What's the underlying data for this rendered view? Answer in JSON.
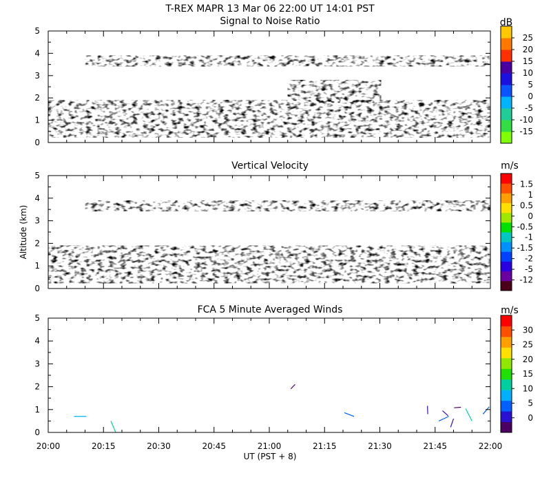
{
  "header": {
    "title": "T-REX   MAPR 13 Mar 06   22:00 UT   14:01   PST"
  },
  "shared": {
    "x_axis_label": "UT  (PST + 8)",
    "x_tick_labels": [
      "20:00",
      "20:15",
      "20:30",
      "20:45",
      "21:00",
      "21:15",
      "21:30",
      "21:45",
      "22:00"
    ],
    "y_axis_label": "Altitude (km)"
  },
  "chart_data": [
    {
      "type": "heatmap",
      "title": "Signal to Noise Ratio",
      "xlabel": "",
      "ylabel": "",
      "x_range": [
        "20:00",
        "22:00"
      ],
      "ylim": [
        0,
        5
      ],
      "y_ticks": [
        "0",
        "1",
        "2",
        "3",
        "4",
        "5"
      ],
      "colorbar": {
        "unit": "dB",
        "labels": [
          "-15",
          "-10",
          "-5",
          "0",
          "5",
          "10",
          "15",
          "20",
          "25"
        ],
        "colors": [
          "#80ff00",
          "#33dd44",
          "#22cc99",
          "#00b4ff",
          "#0a55ff",
          "#1a10e0",
          "#4a00a0",
          "#ff3000",
          "#ff7800",
          "#ffc800"
        ]
      },
      "data_gap": [
        "20:59",
        "21:05"
      ],
      "features": [
        {
          "name": "boundary layer echo",
          "t_start": "20:00",
          "t_end": "22:00",
          "alt_low": 0.3,
          "alt_high": 1.9,
          "db_typical": -10
        },
        {
          "name": "upper echo layer",
          "t_start": "20:10",
          "t_end": "22:00",
          "alt_low": 3.5,
          "alt_high": 3.9,
          "db_typical": -13
        },
        {
          "name": "mid-level echo",
          "t_start": "21:05",
          "t_end": "21:30",
          "alt_low": 1.8,
          "alt_high": 2.8,
          "db_typical": 5
        }
      ]
    },
    {
      "type": "heatmap",
      "title": "Vertical Velocity",
      "xlabel": "",
      "ylabel": "Altitude (km)",
      "x_range": [
        "20:00",
        "22:00"
      ],
      "ylim": [
        0,
        5
      ],
      "y_ticks": [
        "0",
        "1",
        "2",
        "3",
        "4",
        "5"
      ],
      "colorbar": {
        "unit": "m/s",
        "labels": [
          "-12",
          "-5",
          "-2",
          "-1.5",
          "-1",
          "-0.5",
          "0",
          "0.5",
          "1",
          "1.5"
        ],
        "colors": [
          "#4a0018",
          "#6a00a0",
          "#2a00e0",
          "#0040ff",
          "#0090ff",
          "#00c8c0",
          "#00e000",
          "#a0e800",
          "#ffe000",
          "#ffa000",
          "#ff5000",
          "#ff0000"
        ]
      },
      "data_gap": [
        "20:59",
        "21:05"
      ],
      "features": [
        {
          "name": "boundary layer velocities",
          "t_start": "20:00",
          "t_end": "22:00",
          "alt_low": 0.3,
          "alt_high": 1.9,
          "w_range": [
            -5,
            1.5
          ]
        },
        {
          "name": "upper layer velocities",
          "t_start": "20:10",
          "t_end": "22:00",
          "alt_low": 3.5,
          "alt_high": 3.9,
          "w_range": [
            -1,
            1
          ]
        }
      ]
    },
    {
      "type": "scatter",
      "title": "FCA 5 Minute Averaged Winds",
      "xlabel": "UT  (PST + 8)",
      "ylabel": "",
      "x_range": [
        "20:00",
        "22:00"
      ],
      "ylim": [
        0,
        5
      ],
      "y_ticks": [
        "0",
        "1",
        "2",
        "3",
        "4",
        "5"
      ],
      "colorbar": {
        "unit": "m/s",
        "labels": [
          "0",
          "5",
          "10",
          "15",
          "20",
          "25",
          "30"
        ],
        "colors": [
          "#4a0060",
          "#2a10d0",
          "#0060ff",
          "#00b0ff",
          "#00d0a0",
          "#20e000",
          "#90e800",
          "#ffe000",
          "#ffa000",
          "#ff5000",
          "#ff0000"
        ]
      },
      "wind_vectors": [
        {
          "time": "20:07",
          "alt": 0.7,
          "speed": 10
        },
        {
          "time": "20:17",
          "alt": 0.5,
          "speed": 11
        },
        {
          "time": "21:07",
          "alt": 2.1,
          "speed": 1
        },
        {
          "time": "21:23",
          "alt": 0.7,
          "speed": 7
        },
        {
          "time": "21:43",
          "alt": 0.8,
          "speed": 4
        },
        {
          "time": "21:46",
          "alt": 0.5,
          "speed": 8
        },
        {
          "time": "21:47",
          "alt": 0.95,
          "speed": 3
        },
        {
          "time": "21:50",
          "alt": 0.6,
          "speed": 5
        },
        {
          "time": "21:52",
          "alt": 1.1,
          "speed": 2
        },
        {
          "time": "21:55",
          "alt": 0.5,
          "speed": 12
        },
        {
          "time": "21:58",
          "alt": 0.8,
          "speed": 6
        }
      ]
    }
  ]
}
